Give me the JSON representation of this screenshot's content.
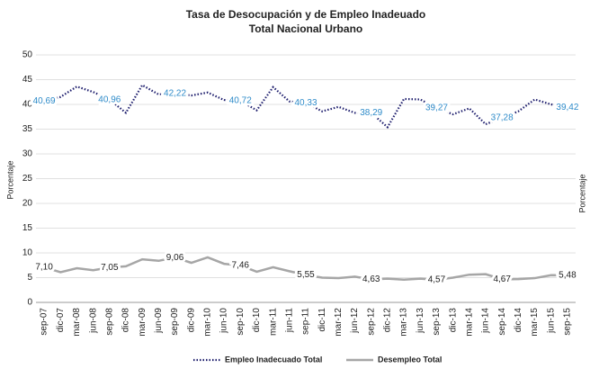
{
  "chart_data": {
    "type": "line",
    "title": "Tasa de Desocupación y de Empleo Inadeuado",
    "subtitle": "Total Nacional Urbano",
    "ylabel": "Porcentaje",
    "y2label": "Porcentaje",
    "categories": [
      "sep-07",
      "dic-07",
      "mar-08",
      "jun-08",
      "sep-08",
      "dic-08",
      "mar-09",
      "jun-09",
      "sep-09",
      "dic-09",
      "mar-10",
      "jun-10",
      "sep-10",
      "dic-10",
      "mar-11",
      "jun-11",
      "sep-11",
      "dic-11",
      "mar-12",
      "jun-12",
      "sep-12",
      "dic-12",
      "mar-13",
      "jun-13",
      "sep-13",
      "dic-13",
      "mar-14",
      "jun-14",
      "sep-14",
      "dic-14",
      "mar-15",
      "jun-15",
      "sep-15"
    ],
    "ylim": [
      0,
      50
    ],
    "yticks": [
      0,
      5,
      10,
      15,
      20,
      25,
      30,
      35,
      40,
      45,
      50
    ],
    "grid": true,
    "legend": "bottom",
    "series": [
      {
        "name": "Empleo Inadecuado Total",
        "color": "#1f1f6e",
        "dash": "dotted",
        "label_color": "#2e8bc9",
        "values": [
          40.69,
          41.5,
          43.6,
          42.5,
          40.96,
          38.3,
          43.9,
          42.0,
          42.22,
          41.8,
          42.4,
          40.9,
          40.72,
          38.8,
          43.5,
          40.6,
          40.33,
          38.6,
          39.5,
          38.3,
          38.29,
          35.4,
          41.1,
          41.0,
          39.27,
          38.0,
          39.2,
          36.0,
          37.28,
          38.6,
          41.0,
          40.0,
          39.42
        ],
        "value_labels": [
          "40,69",
          null,
          null,
          null,
          "40,96",
          null,
          null,
          null,
          "42,22",
          null,
          null,
          null,
          "40,72",
          null,
          null,
          null,
          "40,33",
          null,
          null,
          null,
          "38,29",
          null,
          null,
          null,
          "39,27",
          null,
          null,
          null,
          "37,28",
          null,
          null,
          null,
          "39,42"
        ]
      },
      {
        "name": "Desempleo Total",
        "color": "#a6a6a6",
        "dash": "solid",
        "label_color": "#222222",
        "values": [
          7.1,
          6.1,
          6.9,
          6.5,
          7.05,
          7.3,
          8.7,
          8.4,
          9.06,
          8.0,
          9.1,
          7.8,
          7.46,
          6.2,
          7.1,
          6.3,
          5.55,
          5.0,
          4.9,
          5.2,
          4.63,
          4.8,
          4.6,
          4.8,
          4.57,
          5.0,
          5.6,
          5.7,
          4.67,
          4.7,
          4.9,
          5.5,
          5.48
        ],
        "value_labels": [
          "7,10",
          null,
          null,
          null,
          "7,05",
          null,
          null,
          null,
          "9,06",
          null,
          null,
          null,
          "7,46",
          null,
          null,
          null,
          "5,55",
          null,
          null,
          null,
          "4,63",
          null,
          null,
          null,
          "4,57",
          null,
          null,
          null,
          "4,67",
          null,
          null,
          null,
          "5,48"
        ]
      }
    ]
  }
}
